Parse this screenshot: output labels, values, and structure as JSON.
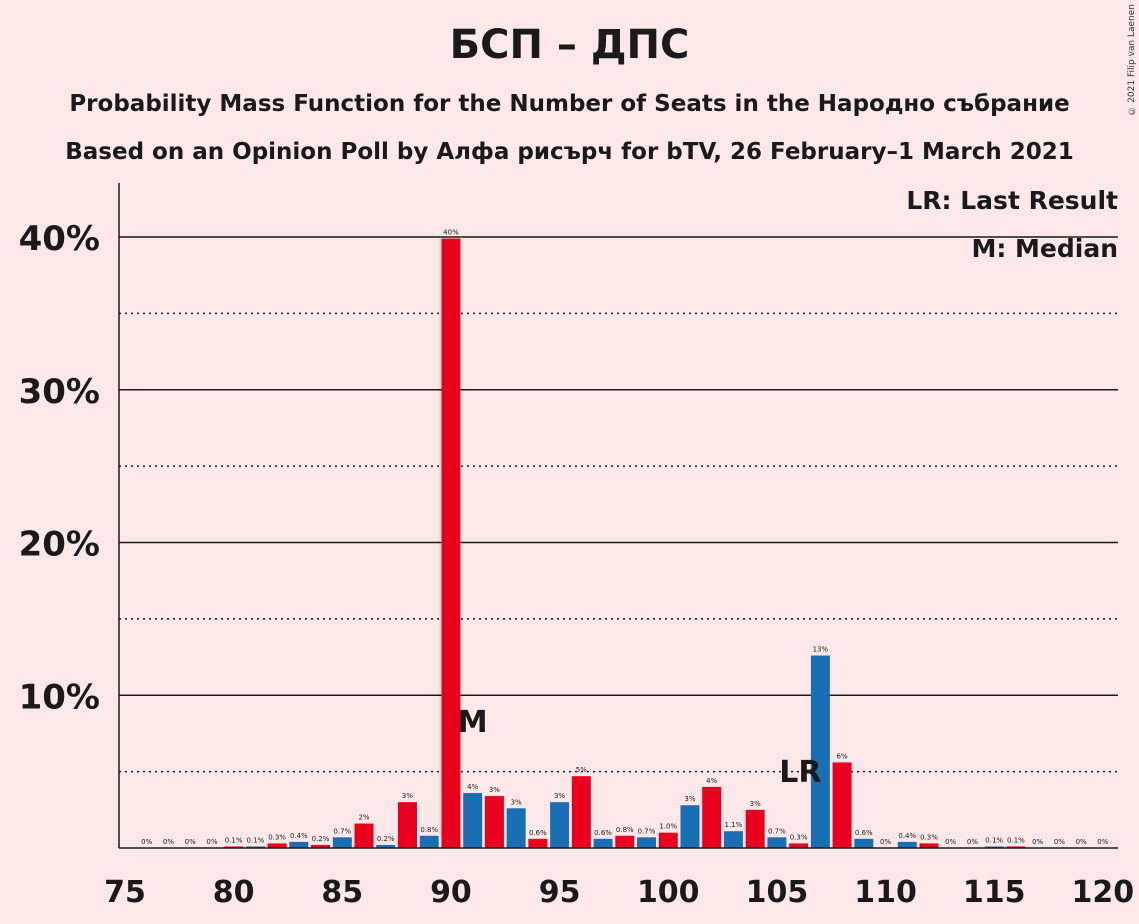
{
  "title": "БСП – ДПС",
  "subtitle1": "Probability Mass Function for the Number of Seats in the Народно събрание",
  "subtitle2": "Based on an Opinion Poll by Алфа рисърч for bTV, 26 February–1 March 2021",
  "copyright": "© 2021 Filip van Laenen",
  "legend": {
    "lr": "LR: Last Result",
    "median": "M: Median"
  },
  "markers": {
    "median_label": "M",
    "median_seat": 91,
    "lr_label": "LR",
    "lr_seat": 107
  },
  "colors": {
    "red": "#e8001e",
    "blue": "#1a6eb4",
    "background": "#fce8e8",
    "text": "#1a1a1a"
  },
  "chart_data": {
    "type": "bar",
    "xlabel": "",
    "ylabel": "",
    "xlim": [
      75,
      120
    ],
    "ylim": [
      0,
      43.5
    ],
    "x_ticks": [
      75,
      80,
      85,
      90,
      95,
      100,
      105,
      110,
      115,
      120
    ],
    "y_ticks": [
      10,
      20,
      30,
      40
    ],
    "y_tick_labels": [
      "10%",
      "20%",
      "30%",
      "40%"
    ],
    "grid_solid": [
      10,
      20,
      30,
      40
    ],
    "grid_dotted": [
      5,
      15,
      25,
      35
    ],
    "seats": [
      76,
      77,
      78,
      79,
      80,
      81,
      82,
      83,
      84,
      85,
      86,
      87,
      88,
      89,
      90,
      91,
      92,
      93,
      94,
      95,
      96,
      97,
      98,
      99,
      100,
      101,
      102,
      103,
      104,
      105,
      106,
      107,
      108,
      109,
      110,
      111,
      112,
      113,
      114,
      115,
      116,
      117,
      118,
      119,
      120
    ],
    "values": [
      0,
      0,
      0,
      0,
      0.1,
      0.1,
      0.3,
      0.4,
      0.2,
      0.7,
      1.6,
      0.2,
      3.0,
      0.8,
      39.9,
      3.6,
      3.4,
      2.6,
      0.6,
      3.0,
      4.7,
      0.6,
      0.8,
      0.7,
      1.0,
      2.8,
      4.0,
      1.1,
      2.5,
      0.7,
      0.3,
      12.6,
      5.6,
      0.6,
      0,
      0.4,
      0.3,
      0,
      0,
      0.1,
      0.1,
      0,
      0,
      0,
      0
    ],
    "labels": [
      "0%",
      "0%",
      "0%",
      "0%",
      "0.1%",
      "0.1%",
      "0.3%",
      "0.4%",
      "0.2%",
      "0.7%",
      "2%",
      "0.2%",
      "3%",
      "0.8%",
      "40%",
      "4%",
      "3%",
      "3%",
      "0.6%",
      "3%",
      "5%",
      "0.6%",
      "0.8%",
      "0.7%",
      "1.0%",
      "3%",
      "4%",
      "1.1%",
      "3%",
      "0.7%",
      "0.3%",
      "13%",
      "6%",
      "0.6%",
      "0%",
      "0.4%",
      "0.3%",
      "0%",
      "0%",
      "0.1%",
      "0.1%",
      "0%",
      "0%",
      "0%",
      "0%"
    ]
  }
}
